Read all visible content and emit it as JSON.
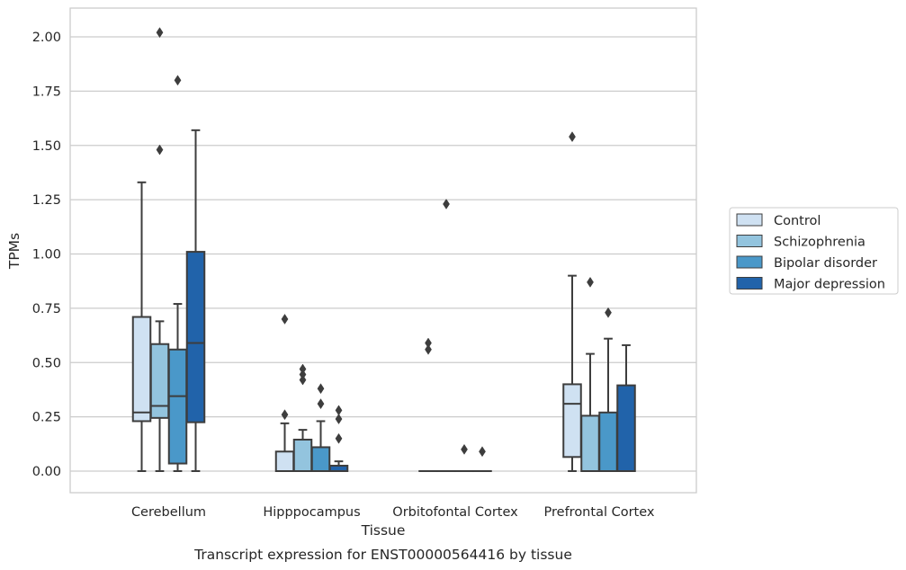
{
  "chart_data": {
    "type": "box",
    "xlabel": "Tissue",
    "ylabel": "TPMs",
    "caption": "Transcript expression for ENST00000564416 by tissue",
    "ylim": [
      -0.1,
      2.12
    ],
    "yticks": [
      "0.00",
      "0.25",
      "0.50",
      "0.75",
      "1.00",
      "1.25",
      "1.50",
      "1.75",
      "2.00"
    ],
    "grid": true,
    "legend_position": "right",
    "categories": [
      "Cerebellum",
      "Hipppocampus",
      "Orbitofontal Cortex",
      "Prefrontal Cortex"
    ],
    "series": [
      {
        "name": "Control",
        "color": "#cfe1f2",
        "boxes": [
          {
            "whislo": 0.0,
            "q1": 0.23,
            "med": 0.27,
            "q3": 0.71,
            "whishi": 1.33,
            "fliers": []
          },
          {
            "whislo": 0.0,
            "q1": 0.0,
            "med": 0.0,
            "q3": 0.09,
            "whishi": 0.22,
            "fliers": [
              0.26,
              0.7
            ]
          },
          {
            "whislo": 0.0,
            "q1": 0.0,
            "med": 0.0,
            "q3": 0.0,
            "whishi": 0.0,
            "fliers": [
              0.56,
              0.59
            ]
          },
          {
            "whislo": 0.0,
            "q1": 0.065,
            "med": 0.31,
            "q3": 0.4,
            "whishi": 0.9,
            "fliers": [
              1.54
            ]
          }
        ]
      },
      {
        "name": "Schizophrenia",
        "color": "#93c4de",
        "boxes": [
          {
            "whislo": 0.0,
            "q1": 0.245,
            "med": 0.3,
            "q3": 0.585,
            "whishi": 0.69,
            "fliers": [
              1.48,
              2.02
            ]
          },
          {
            "whislo": 0.0,
            "q1": 0.0,
            "med": 0.0,
            "q3": 0.145,
            "whishi": 0.19,
            "fliers": [
              0.42,
              0.445,
              0.47
            ]
          },
          {
            "whislo": 0.0,
            "q1": 0.0,
            "med": 0.0,
            "q3": 0.0,
            "whishi": 0.0,
            "fliers": [
              1.23
            ]
          },
          {
            "whislo": 0.0,
            "q1": 0.0,
            "med": 0.0,
            "q3": 0.255,
            "whishi": 0.54,
            "fliers": [
              0.87
            ]
          }
        ]
      },
      {
        "name": "Bipolar disorder",
        "color": "#4a98c9",
        "boxes": [
          {
            "whislo": 0.0,
            "q1": 0.035,
            "med": 0.345,
            "q3": 0.56,
            "whishi": 0.77,
            "fliers": [
              1.8
            ]
          },
          {
            "whislo": 0.0,
            "q1": 0.0,
            "med": 0.0,
            "q3": 0.11,
            "whishi": 0.23,
            "fliers": [
              0.31,
              0.38
            ]
          },
          {
            "whislo": 0.0,
            "q1": 0.0,
            "med": 0.0,
            "q3": 0.0,
            "whishi": 0.0,
            "fliers": [
              0.1
            ]
          },
          {
            "whislo": 0.0,
            "q1": 0.0,
            "med": 0.0,
            "q3": 0.27,
            "whishi": 0.61,
            "fliers": [
              0.73
            ]
          }
        ]
      },
      {
        "name": "Major depression",
        "color": "#2163aa",
        "boxes": [
          {
            "whislo": 0.0,
            "q1": 0.225,
            "med": 0.59,
            "q3": 1.01,
            "whishi": 1.57,
            "fliers": []
          },
          {
            "whislo": 0.0,
            "q1": 0.0,
            "med": 0.0,
            "q3": 0.025,
            "whishi": 0.045,
            "fliers": [
              0.15,
              0.24,
              0.28
            ]
          },
          {
            "whislo": 0.0,
            "q1": 0.0,
            "med": 0.0,
            "q3": 0.0,
            "whishi": 0.0,
            "fliers": [
              0.09
            ]
          },
          {
            "whislo": 0.0,
            "q1": 0.0,
            "med": 0.0,
            "q3": 0.395,
            "whishi": 0.58,
            "fliers": []
          }
        ]
      }
    ]
  }
}
